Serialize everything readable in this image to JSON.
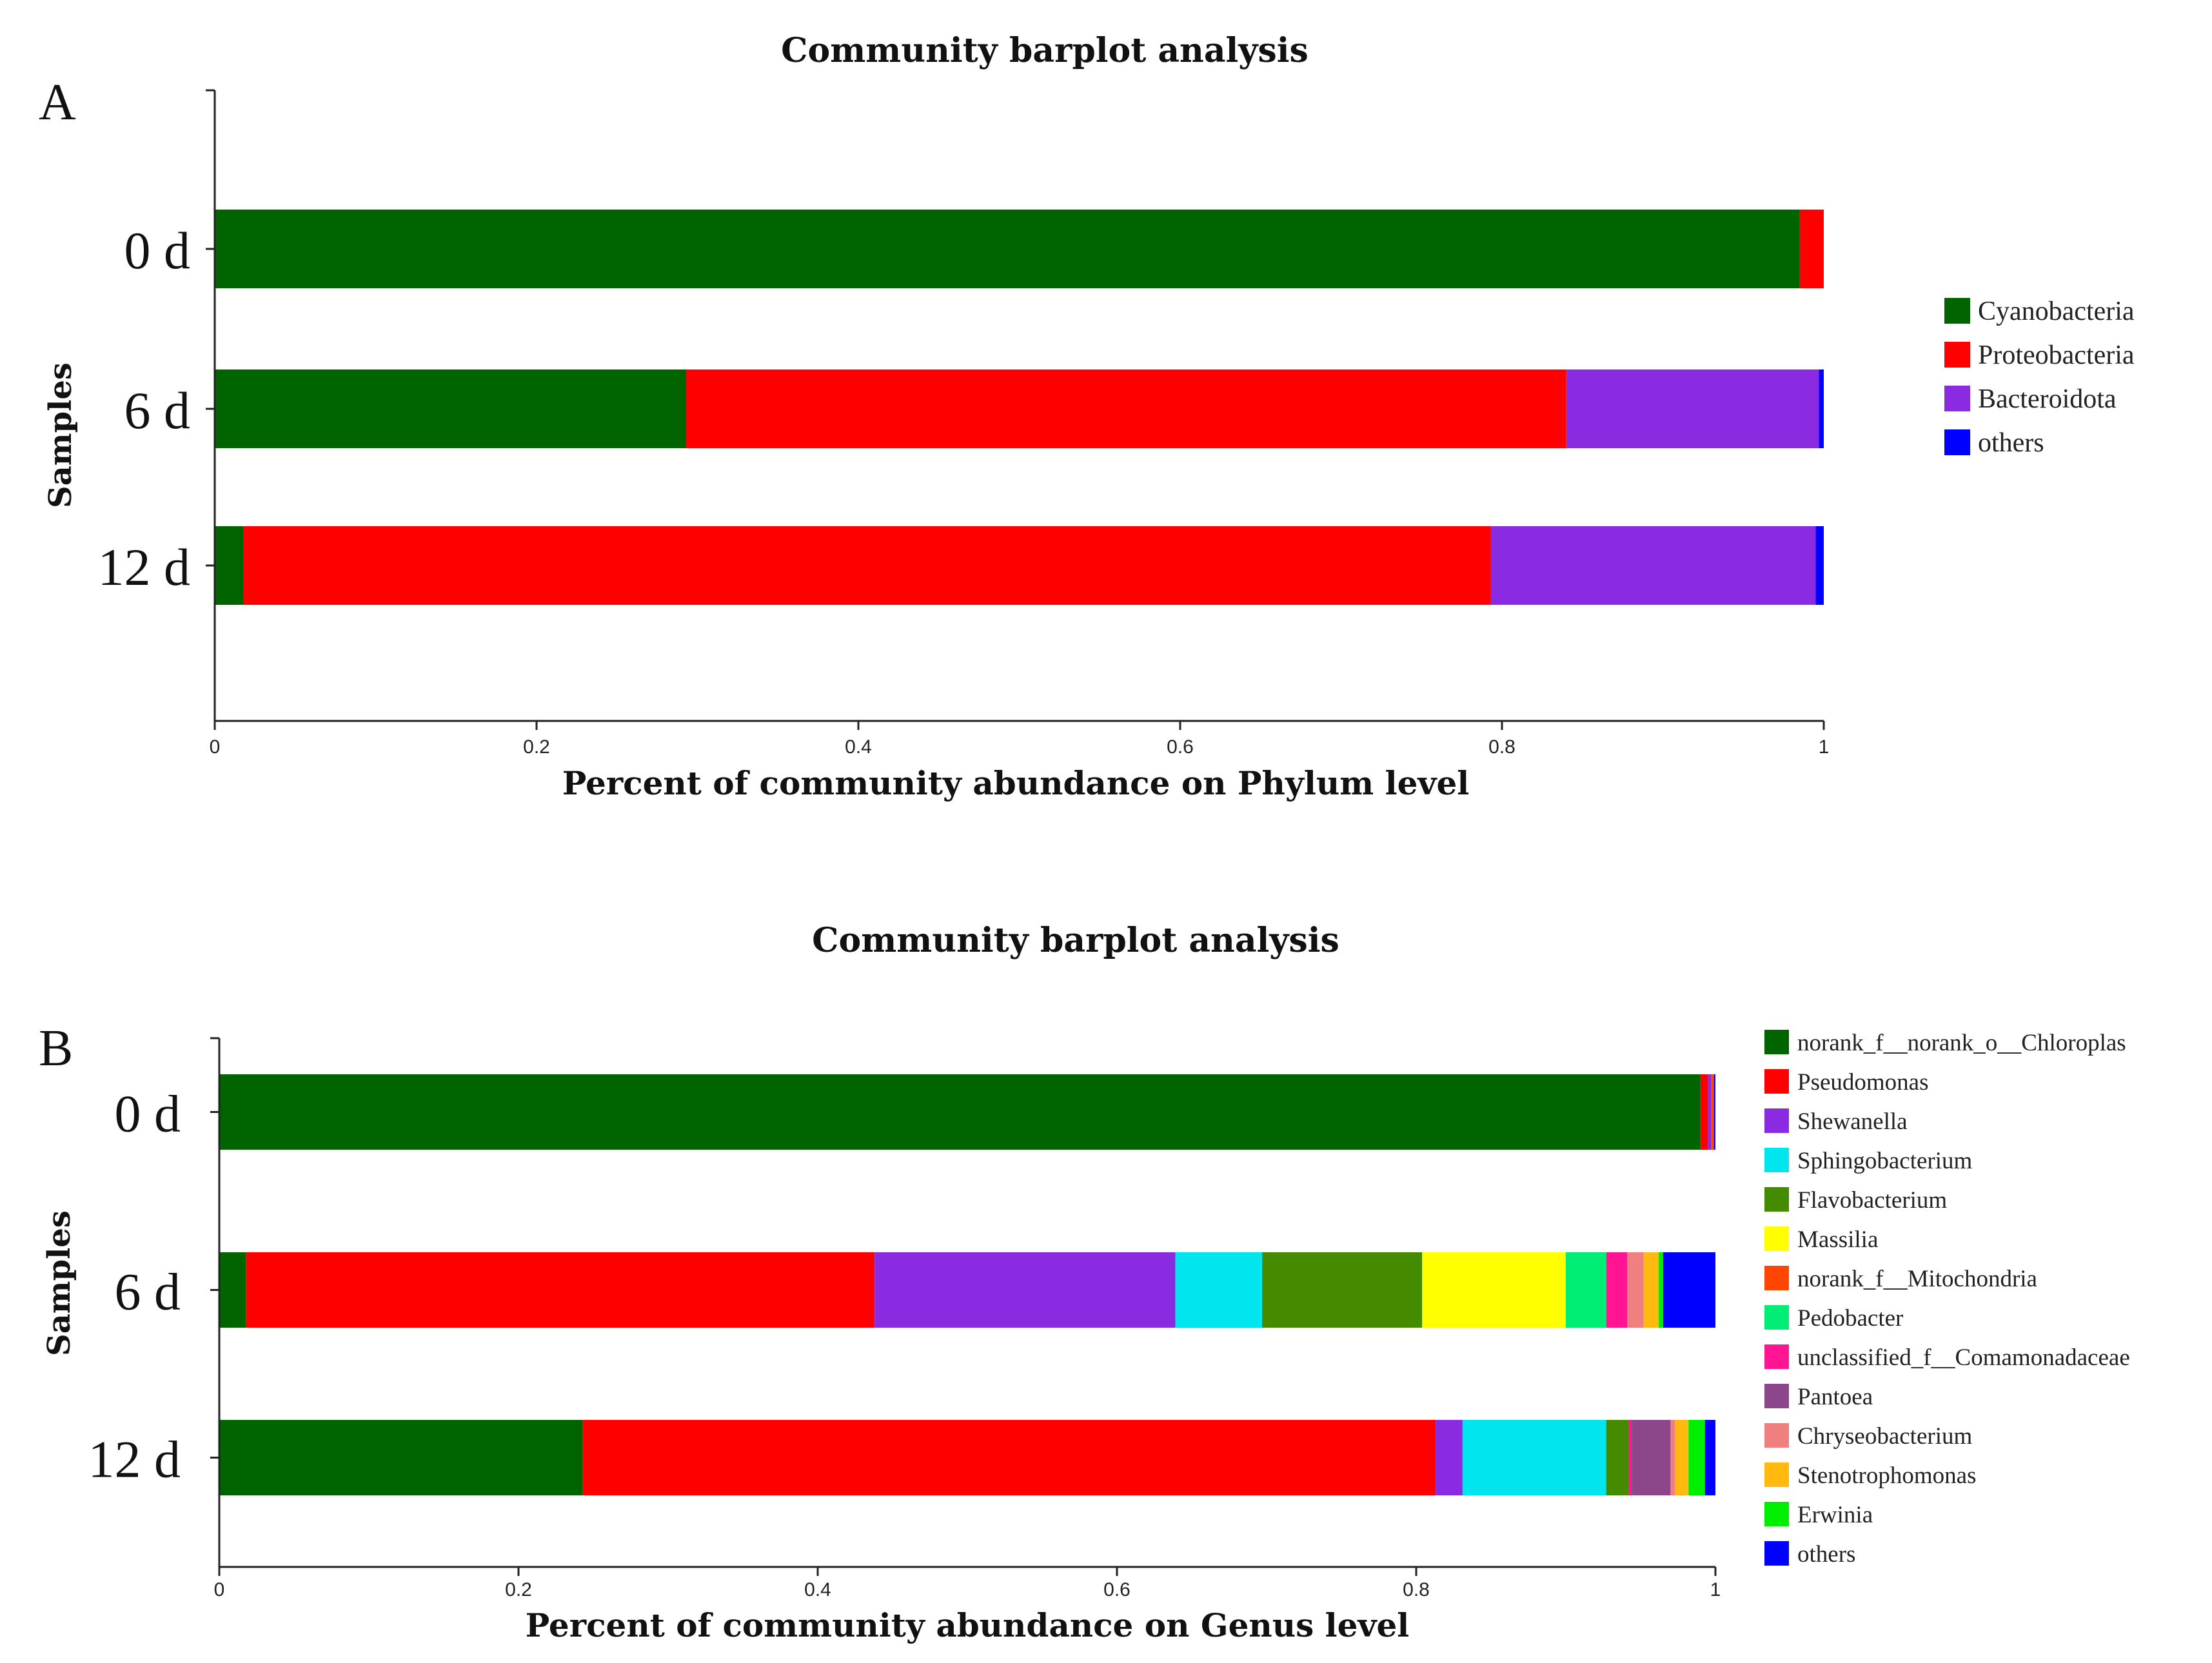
{
  "chart_data": [
    {
      "type": "bar",
      "orientation": "horizontal",
      "stacked": true,
      "panel": "A",
      "title": "Community barplot analysis",
      "xlabel": "Percent of community abundance on Phylum level",
      "ylabel": "Samples",
      "xlim": [
        0,
        1
      ],
      "xticks": [
        "0",
        "0.2",
        "0.4",
        "0.6",
        "0.8",
        "1"
      ],
      "categories": [
        "0 d",
        "6 d",
        "12 d"
      ],
      "legend_position": "right",
      "series": [
        {
          "name": "Cyanobacteria",
          "color": "#006400",
          "values": [
            0.985,
            0.293,
            0.018
          ]
        },
        {
          "name": "Proteobacteria",
          "color": "#ff0000",
          "values": [
            0.015,
            0.547,
            0.775
          ]
        },
        {
          "name": "Bacteroidota",
          "color": "#8a2be2",
          "values": [
            0.0,
            0.157,
            0.202
          ]
        },
        {
          "name": "others",
          "color": "#0000ff",
          "values": [
            0.0,
            0.003,
            0.005
          ]
        }
      ]
    },
    {
      "type": "bar",
      "orientation": "horizontal",
      "stacked": true,
      "panel": "B",
      "title": "Community barplot analysis",
      "xlabel": "Percent of community abundance on Genus level",
      "ylabel": "Samples",
      "xlim": [
        0,
        1
      ],
      "xticks": [
        "0",
        "0.2",
        "0.4",
        "0.6",
        "0.8",
        "1"
      ],
      "categories": [
        "0 d",
        "6 d",
        "12 d"
      ],
      "legend_position": "right",
      "series": [
        {
          "name": "norank_f__norank_o__Chloroplas",
          "color": "#006400",
          "values": [
            0.99,
            0.018,
            0.243
          ]
        },
        {
          "name": "Pseudomonas",
          "color": "#ff0000",
          "values": [
            0.005,
            0.42,
            0.57
          ]
        },
        {
          "name": "Shewanella",
          "color": "#8a2be2",
          "values": [
            0.002,
            0.201,
            0.018
          ]
        },
        {
          "name": "Sphingobacterium",
          "color": "#00e5ee",
          "values": [
            0.0,
            0.058,
            0.096
          ]
        },
        {
          "name": "Flavobacterium",
          "color": "#458b00",
          "values": [
            0.0,
            0.107,
            0.015
          ]
        },
        {
          "name": "Massilia",
          "color": "#ffff00",
          "values": [
            0.0,
            0.096,
            0.0
          ]
        },
        {
          "name": "norank_f__Mitochondria",
          "color": "#ff4500",
          "values": [
            0.002,
            0.0,
            0.0
          ]
        },
        {
          "name": "Pedobacter",
          "color": "#00ee76",
          "values": [
            0.0,
            0.027,
            0.0
          ]
        },
        {
          "name": "unclassified_f__Comamonadaceae",
          "color": "#ff1493",
          "values": [
            0.0,
            0.014,
            0.002
          ]
        },
        {
          "name": "Pantoea",
          "color": "#8b4789",
          "values": [
            0.0,
            0.0,
            0.026
          ]
        },
        {
          "name": "Chryseobacterium",
          "color": "#f08080",
          "values": [
            0.0,
            0.011,
            0.003
          ]
        },
        {
          "name": "Stenotrophomonas",
          "color": "#ffb90f",
          "values": [
            0.0,
            0.01,
            0.009
          ]
        },
        {
          "name": "Erwinia",
          "color": "#00ee00",
          "values": [
            0.0,
            0.003,
            0.011
          ]
        },
        {
          "name": "others",
          "color": "#0000ff",
          "values": [
            0.001,
            0.035,
            0.007
          ]
        }
      ]
    }
  ]
}
